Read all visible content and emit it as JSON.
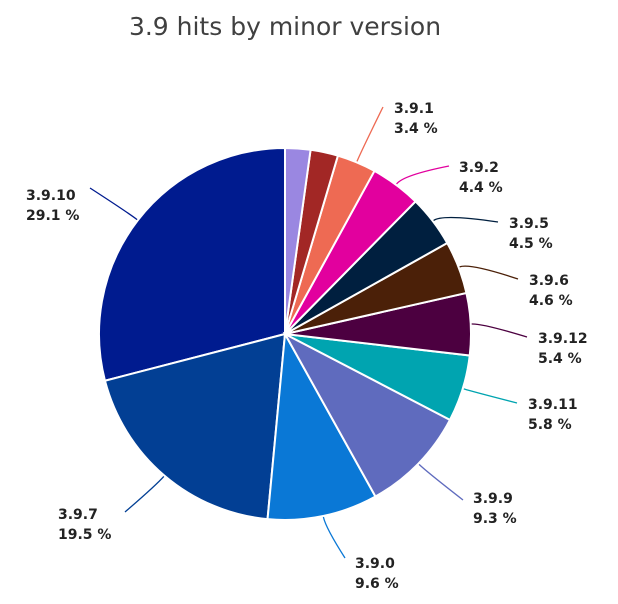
{
  "chart_data": {
    "type": "pie",
    "title": "3.9 hits by minor version",
    "slices": [
      {
        "label": "3.9.10",
        "value": 29.1,
        "value_text": "29.1 %",
        "color": "#001b8f"
      },
      {
        "label": "3.9.7",
        "value": 19.5,
        "value_text": "19.5 %",
        "color": "#023f94"
      },
      {
        "label": "3.9.0",
        "value": 9.6,
        "value_text": "9.6 %",
        "color": "#0a78d6"
      },
      {
        "label": "3.9.9",
        "value": 9.3,
        "value_text": "9.3 %",
        "color": "#5f6bbe"
      },
      {
        "label": "3.9.11",
        "value": 5.8,
        "value_text": "5.8 %",
        "color": "#00a4b0"
      },
      {
        "label": "3.9.12",
        "value": 5.4,
        "value_text": "5.4 %",
        "color": "#4c0040"
      },
      {
        "label": "3.9.6",
        "value": 4.6,
        "value_text": "4.6 %",
        "color": "#4b2008"
      },
      {
        "label": "3.9.5",
        "value": 4.5,
        "value_text": "4.5 %",
        "color": "#001f3f"
      },
      {
        "label": "3.9.2",
        "value": 4.4,
        "value_text": "4.4 %",
        "color": "#e2009e"
      },
      {
        "label": "3.9.1",
        "value": 3.4,
        "value_text": "3.4 %",
        "color": "#ee6a53"
      },
      {
        "label": "",
        "value": 2.4,
        "value_text": "",
        "color": "#a22725"
      },
      {
        "label": "",
        "value": 2.2,
        "value_text": "",
        "color": "#9a87e1"
      }
    ]
  }
}
